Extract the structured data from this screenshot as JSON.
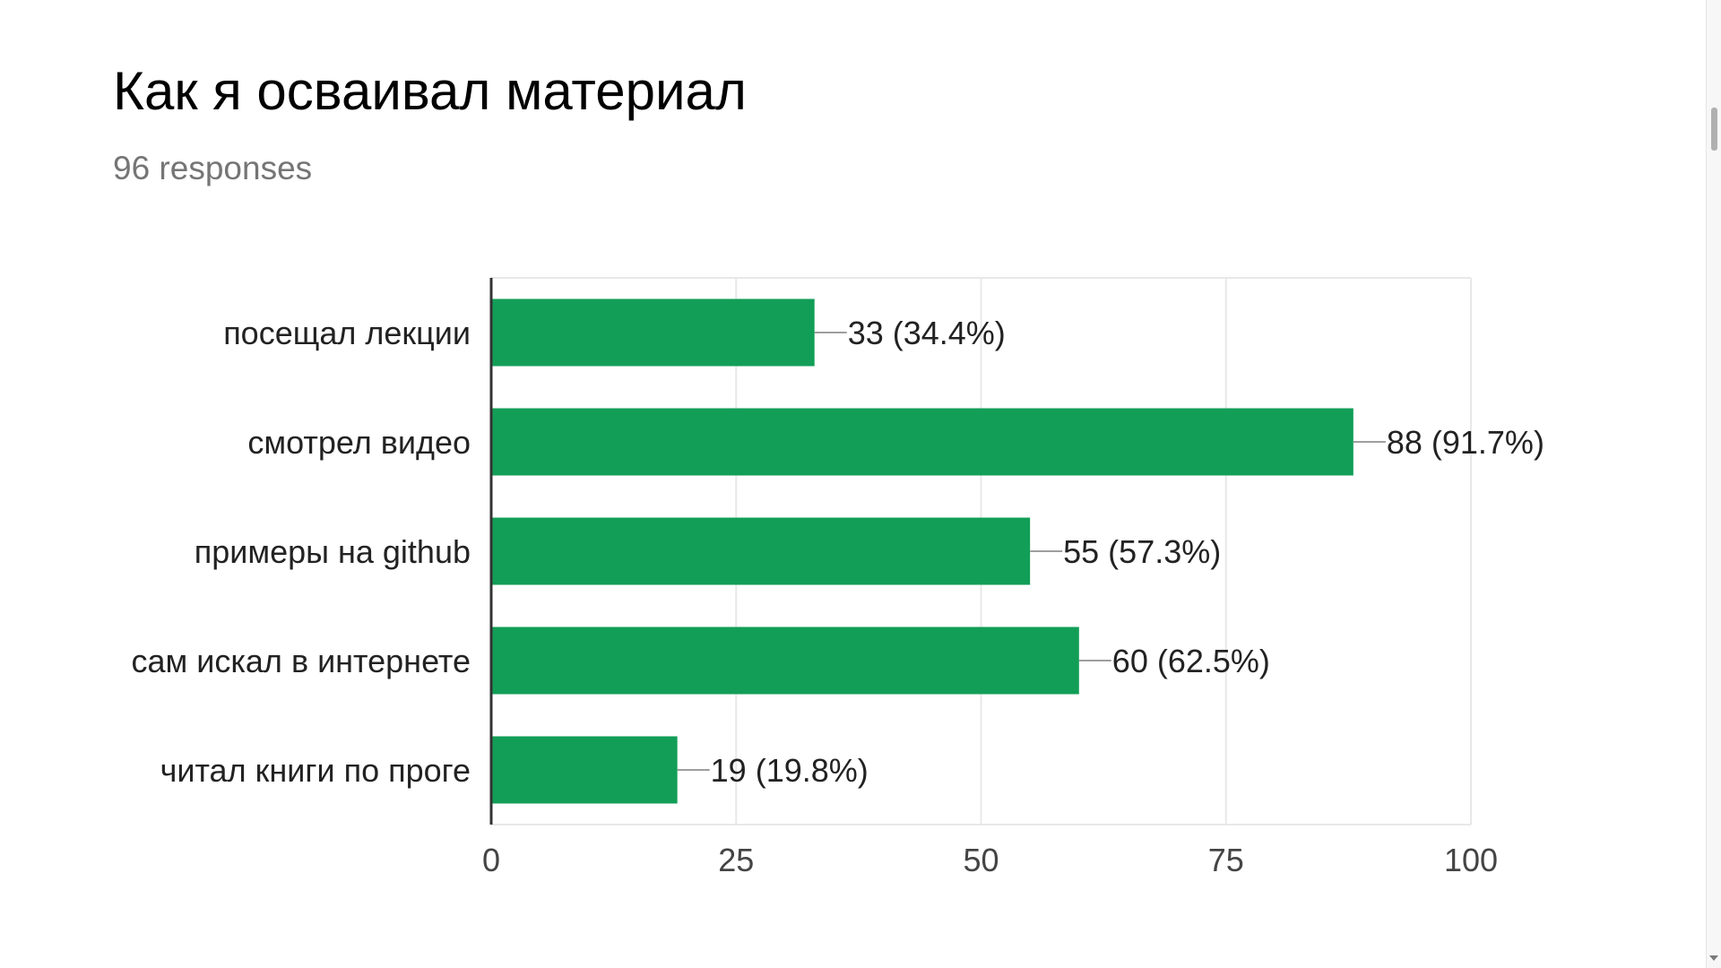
{
  "question": {
    "title": "Как я осваивал материал",
    "responses": "96 responses"
  },
  "colors": {
    "bar": "#129e57",
    "axis": "#333333",
    "grid": "#e8e8e8",
    "label": "#222222",
    "tick": "#444444",
    "leader": "#9e9e9e",
    "subtitle": "#757575"
  },
  "chart_data": {
    "type": "bar",
    "orientation": "horizontal",
    "categories": [
      "посещал лекции",
      "смотрел видео",
      "примеры на github",
      "сам искал в интернете",
      "читал книги по проге"
    ],
    "values": [
      33,
      88,
      55,
      60,
      19
    ],
    "data_labels": [
      "33 (34.4%)",
      "88 (91.7%)",
      "55 (57.3%)",
      "60 (62.5%)",
      "19 (19.8%)"
    ],
    "xlim": [
      0,
      100
    ],
    "xticks": [
      "0",
      "25",
      "50",
      "75",
      "100"
    ],
    "grid": true,
    "legend": "none"
  }
}
